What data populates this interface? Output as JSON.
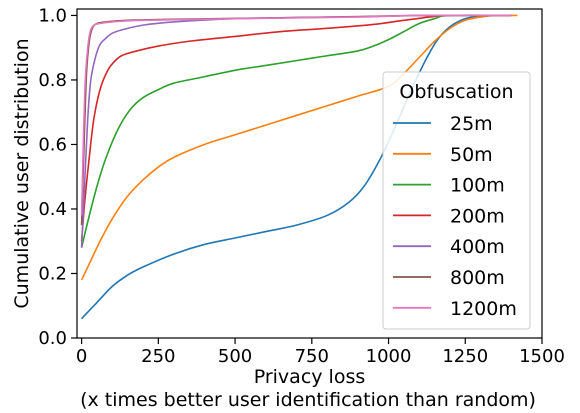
{
  "chart_data": {
    "type": "line",
    "xlabel": "Privacy loss",
    "xlabel_sub": "(x times better user identification than random)",
    "ylabel": "Cumulative user distribution",
    "xlim": [
      -15,
      1500
    ],
    "ylim": [
      0.0,
      1.02
    ],
    "x_ticks": [
      0,
      250,
      500,
      750,
      1000,
      1250,
      1500
    ],
    "x_tick_labels": [
      "0",
      "250",
      "500",
      "750",
      "1000",
      "1250",
      "1500"
    ],
    "y_ticks": [
      0.0,
      0.2,
      0.4,
      0.6,
      0.8,
      1.0
    ],
    "y_tick_labels": [
      "0.0",
      "0.2",
      "0.4",
      "0.6",
      "0.8",
      "1.0"
    ],
    "grid": false,
    "legend": {
      "title": "Obfuscation",
      "placement": "right"
    },
    "series": [
      {
        "name": "25m",
        "color": "#1f77b4",
        "points": [
          [
            0,
            0.06
          ],
          [
            50,
            0.11
          ],
          [
            100,
            0.16
          ],
          [
            150,
            0.195
          ],
          [
            200,
            0.22
          ],
          [
            300,
            0.26
          ],
          [
            400,
            0.29
          ],
          [
            500,
            0.31
          ],
          [
            600,
            0.33
          ],
          [
            700,
            0.35
          ],
          [
            800,
            0.38
          ],
          [
            870,
            0.42
          ],
          [
            920,
            0.47
          ],
          [
            970,
            0.55
          ],
          [
            1020,
            0.65
          ],
          [
            1070,
            0.76
          ],
          [
            1120,
            0.86
          ],
          [
            1160,
            0.925
          ],
          [
            1200,
            0.965
          ],
          [
            1250,
            0.99
          ],
          [
            1300,
            0.998
          ],
          [
            1340,
            1.0
          ]
        ]
      },
      {
        "name": "50m",
        "color": "#ff7f0e",
        "points": [
          [
            0,
            0.18
          ],
          [
            30,
            0.24
          ],
          [
            60,
            0.3
          ],
          [
            100,
            0.37
          ],
          [
            150,
            0.44
          ],
          [
            200,
            0.49
          ],
          [
            250,
            0.53
          ],
          [
            300,
            0.56
          ],
          [
            400,
            0.6
          ],
          [
            500,
            0.63
          ],
          [
            600,
            0.66
          ],
          [
            700,
            0.69
          ],
          [
            800,
            0.72
          ],
          [
            900,
            0.75
          ],
          [
            1000,
            0.78
          ],
          [
            1050,
            0.82
          ],
          [
            1100,
            0.87
          ],
          [
            1150,
            0.92
          ],
          [
            1200,
            0.96
          ],
          [
            1250,
            0.985
          ],
          [
            1300,
            0.995
          ],
          [
            1350,
            1.0
          ],
          [
            1420,
            1.0
          ]
        ]
      },
      {
        "name": "100m",
        "color": "#2ca02c",
        "points": [
          [
            0,
            0.28
          ],
          [
            20,
            0.36
          ],
          [
            50,
            0.47
          ],
          [
            80,
            0.56
          ],
          [
            120,
            0.65
          ],
          [
            160,
            0.71
          ],
          [
            200,
            0.745
          ],
          [
            250,
            0.77
          ],
          [
            300,
            0.79
          ],
          [
            400,
            0.81
          ],
          [
            500,
            0.83
          ],
          [
            600,
            0.845
          ],
          [
            700,
            0.86
          ],
          [
            800,
            0.875
          ],
          [
            900,
            0.89
          ],
          [
            950,
            0.905
          ],
          [
            1000,
            0.925
          ],
          [
            1050,
            0.95
          ],
          [
            1100,
            0.975
          ],
          [
            1150,
            0.99
          ],
          [
            1200,
            1.0
          ],
          [
            1400,
            1.0
          ]
        ]
      },
      {
        "name": "200m",
        "color": "#d62728",
        "points": [
          [
            0,
            0.3
          ],
          [
            10,
            0.42
          ],
          [
            25,
            0.56
          ],
          [
            40,
            0.68
          ],
          [
            60,
            0.77
          ],
          [
            80,
            0.82
          ],
          [
            100,
            0.85
          ],
          [
            130,
            0.875
          ],
          [
            180,
            0.89
          ],
          [
            250,
            0.905
          ],
          [
            350,
            0.92
          ],
          [
            500,
            0.935
          ],
          [
            650,
            0.95
          ],
          [
            800,
            0.96
          ],
          [
            950,
            0.972
          ],
          [
            1050,
            0.985
          ],
          [
            1150,
            0.997
          ],
          [
            1200,
            1.0
          ],
          [
            1400,
            1.0
          ]
        ]
      },
      {
        "name": "400m",
        "color": "#9467bd",
        "points": [
          [
            0,
            0.28
          ],
          [
            10,
            0.48
          ],
          [
            20,
            0.68
          ],
          [
            30,
            0.8
          ],
          [
            45,
            0.87
          ],
          [
            60,
            0.91
          ],
          [
            80,
            0.93
          ],
          [
            100,
            0.945
          ],
          [
            130,
            0.955
          ],
          [
            200,
            0.97
          ],
          [
            300,
            0.98
          ],
          [
            500,
            0.99
          ],
          [
            800,
            0.995
          ],
          [
            1000,
            0.998
          ],
          [
            1150,
            1.0
          ],
          [
            1400,
            1.0
          ]
        ]
      },
      {
        "name": "800m",
        "color": "#8c564b",
        "points": [
          [
            0,
            0.35
          ],
          [
            8,
            0.6
          ],
          [
            16,
            0.82
          ],
          [
            25,
            0.92
          ],
          [
            35,
            0.96
          ],
          [
            50,
            0.975
          ],
          [
            80,
            0.98
          ],
          [
            150,
            0.985
          ],
          [
            300,
            0.988
          ],
          [
            600,
            0.992
          ],
          [
            900,
            0.996
          ],
          [
            1100,
            1.0
          ],
          [
            1400,
            1.0
          ]
        ]
      },
      {
        "name": "1200m",
        "color": "#e377c2",
        "points": [
          [
            0,
            0.38
          ],
          [
            6,
            0.62
          ],
          [
            12,
            0.8
          ],
          [
            20,
            0.9
          ],
          [
            28,
            0.95
          ],
          [
            40,
            0.97
          ],
          [
            60,
            0.975
          ],
          [
            100,
            0.98
          ],
          [
            200,
            0.985
          ],
          [
            500,
            0.99
          ],
          [
            900,
            0.995
          ],
          [
            1100,
            1.0
          ],
          [
            1400,
            1.0
          ]
        ]
      }
    ]
  }
}
